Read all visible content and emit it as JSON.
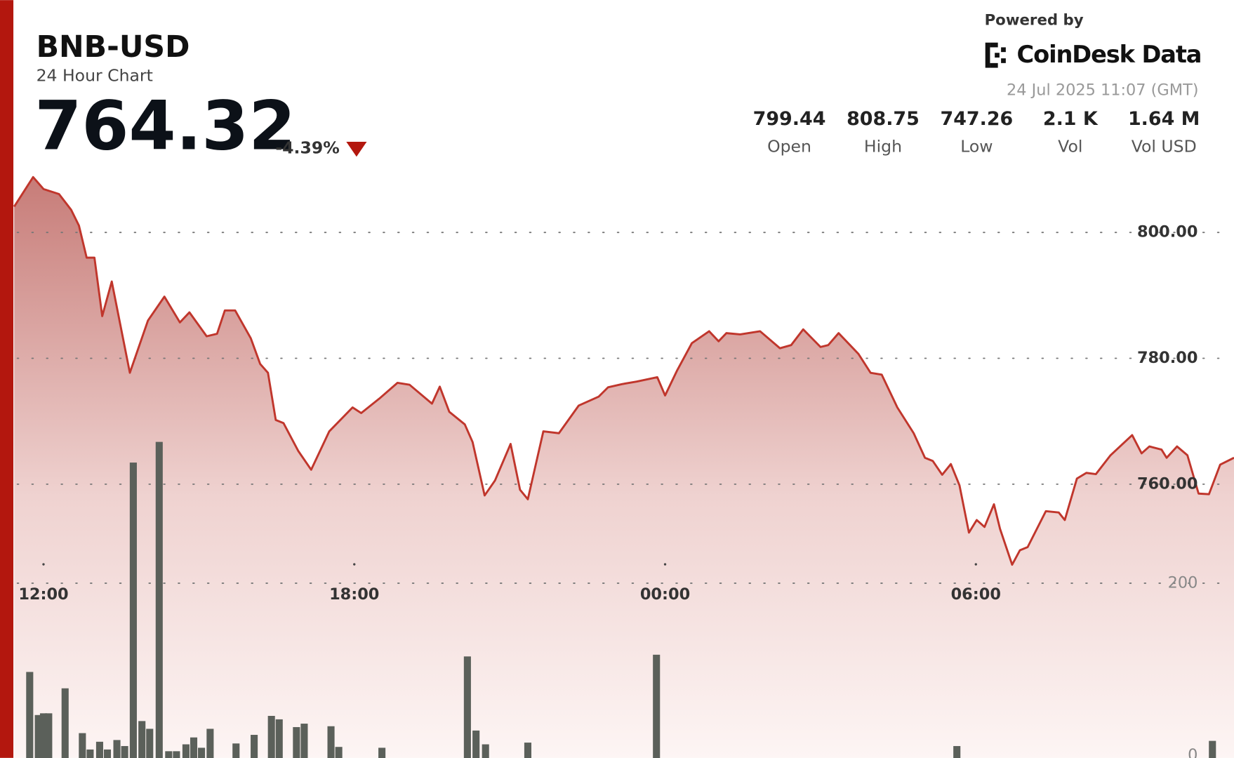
{
  "header": {
    "title": "BNB-USD",
    "subtitle": "24 Hour Chart",
    "price": "764.32",
    "change": "-4.39%",
    "powered_by": "Powered by",
    "brand": "CoinDesk Data",
    "timestamp": "24 Jul 2025 11:07 (GMT)",
    "stats": [
      {
        "value": "799.44",
        "label": "Open"
      },
      {
        "value": "808.75",
        "label": "High"
      },
      {
        "value": "747.26",
        "label": "Low"
      },
      {
        "value": "2.1 K",
        "label": "Vol"
      },
      {
        "value": "1.64 M",
        "label": "Vol USD"
      }
    ]
  },
  "chart_data": {
    "type": "line",
    "x": [
      "11:26",
      "11:48",
      "12:00",
      "12:18",
      "12:32",
      "12:41",
      "12:50",
      "12:59",
      "13:08",
      "13:19",
      "13:40",
      "14:01",
      "14:20",
      "14:38",
      "14:49",
      "15:09",
      "15:21",
      "15:30",
      "15:42",
      "16:00",
      "16:11",
      "16:20",
      "16:29",
      "16:38",
      "16:55",
      "17:10",
      "17:31",
      "17:58",
      "18:08",
      "18:29",
      "18:50",
      "19:04",
      "19:30",
      "19:39",
      "19:50",
      "20:08",
      "20:17",
      "20:31",
      "20:43",
      "21:01",
      "21:12",
      "21:21",
      "21:39",
      "21:57",
      "22:20",
      "22:43",
      "22:54",
      "23:10",
      "23:27",
      "23:51",
      "00:00",
      "00:14",
      "00:31",
      "00:51",
      "01:02",
      "01:11",
      "01:27",
      "01:50",
      "02:13",
      "02:26",
      "02:40",
      "03:00",
      "03:09",
      "03:21",
      "03:44",
      "03:58",
      "04:11",
      "04:29",
      "04:48",
      "05:01",
      "05:10",
      "05:21",
      "05:31",
      "05:41",
      "05:52",
      "06:01",
      "06:10",
      "06:21",
      "06:28",
      "06:42",
      "06:51",
      "07:00",
      "07:21",
      "07:36",
      "07:43",
      "07:57",
      "08:08",
      "08:19",
      "08:36",
      "09:01",
      "09:12",
      "09:21",
      "09:35",
      "09:41",
      "09:53",
      "10:05",
      "10:18",
      "10:30",
      "10:43",
      "10:59"
    ],
    "series": [
      {
        "name": "BNB-USD",
        "color": "#c0362c",
        "values": [
          804.1,
          808.8,
          806.9,
          806.1,
          803.6,
          801.1,
          796.0,
          796.0,
          786.7,
          792.2,
          777.7,
          786.0,
          789.8,
          785.7,
          787.3,
          783.5,
          783.9,
          787.6,
          787.6,
          783.2,
          779.1,
          777.7,
          770.2,
          769.7,
          765.3,
          762.3,
          768.4,
          772.2,
          771.3,
          773.6,
          776.1,
          775.8,
          772.8,
          775.5,
          771.5,
          769.5,
          766.7,
          758.2,
          760.6,
          766.4,
          759.1,
          757.6,
          768.4,
          768.1,
          772.5,
          773.9,
          775.4,
          775.9,
          776.3,
          777.0,
          774.1,
          778.1,
          782.4,
          784.3,
          782.7,
          784.0,
          783.8,
          784.3,
          781.6,
          782.1,
          784.6,
          781.8,
          782.1,
          784.0,
          780.7,
          777.7,
          777.4,
          772.2,
          768.1,
          764.2,
          763.7,
          761.5,
          763.2,
          759.8,
          752.3,
          754.3,
          753.2,
          756.8,
          752.9,
          747.2,
          749.5,
          750.0,
          755.7,
          755.5,
          754.3,
          760.9,
          761.8,
          761.6,
          764.6,
          767.8,
          764.9,
          766.0,
          765.5,
          764.2,
          766.0,
          764.6,
          758.5,
          758.4,
          763.1,
          764.2
        ]
      }
    ],
    "volume": {
      "type": "bar",
      "color": "#5b605a",
      "axis": "y2",
      "x": [
        "11:44",
        "11:54",
        "12:00",
        "12:06",
        "12:25",
        "12:45",
        "12:54",
        "13:05",
        "13:14",
        "13:25",
        "13:34",
        "13:44",
        "13:54",
        "14:03",
        "14:14",
        "14:25",
        "14:34",
        "14:45",
        "14:54",
        "15:03",
        "15:13",
        "15:43",
        "16:04",
        "16:24",
        "16:33",
        "16:53",
        "17:02",
        "17:33",
        "17:42",
        "18:32",
        "20:11",
        "20:21",
        "20:32",
        "21:21",
        "23:50",
        "05:38",
        "10:34"
      ],
      "values": [
        97,
        47,
        49,
        49,
        78,
        26,
        7,
        16,
        7,
        18,
        11,
        340,
        40,
        31,
        364,
        5,
        5,
        13,
        21,
        9,
        31,
        14,
        24,
        46,
        42,
        33,
        37,
        34,
        10,
        9,
        115,
        29,
        13,
        15,
        117,
        11,
        17
      ]
    },
    "xlim": [
      "11:26",
      "10:59"
    ],
    "xticks": [
      "12:00",
      "18:00",
      "00:00",
      "06:00"
    ],
    "ylim": [
      710,
      810
    ],
    "yticks": [
      {
        "value": 800,
        "label": "800.00"
      },
      {
        "value": 780,
        "label": "780.00"
      },
      {
        "value": 760,
        "label": "760.00"
      }
    ],
    "y2lim": [
      0,
      400
    ],
    "y2ticks": [
      0,
      200
    ],
    "grid": true
  }
}
